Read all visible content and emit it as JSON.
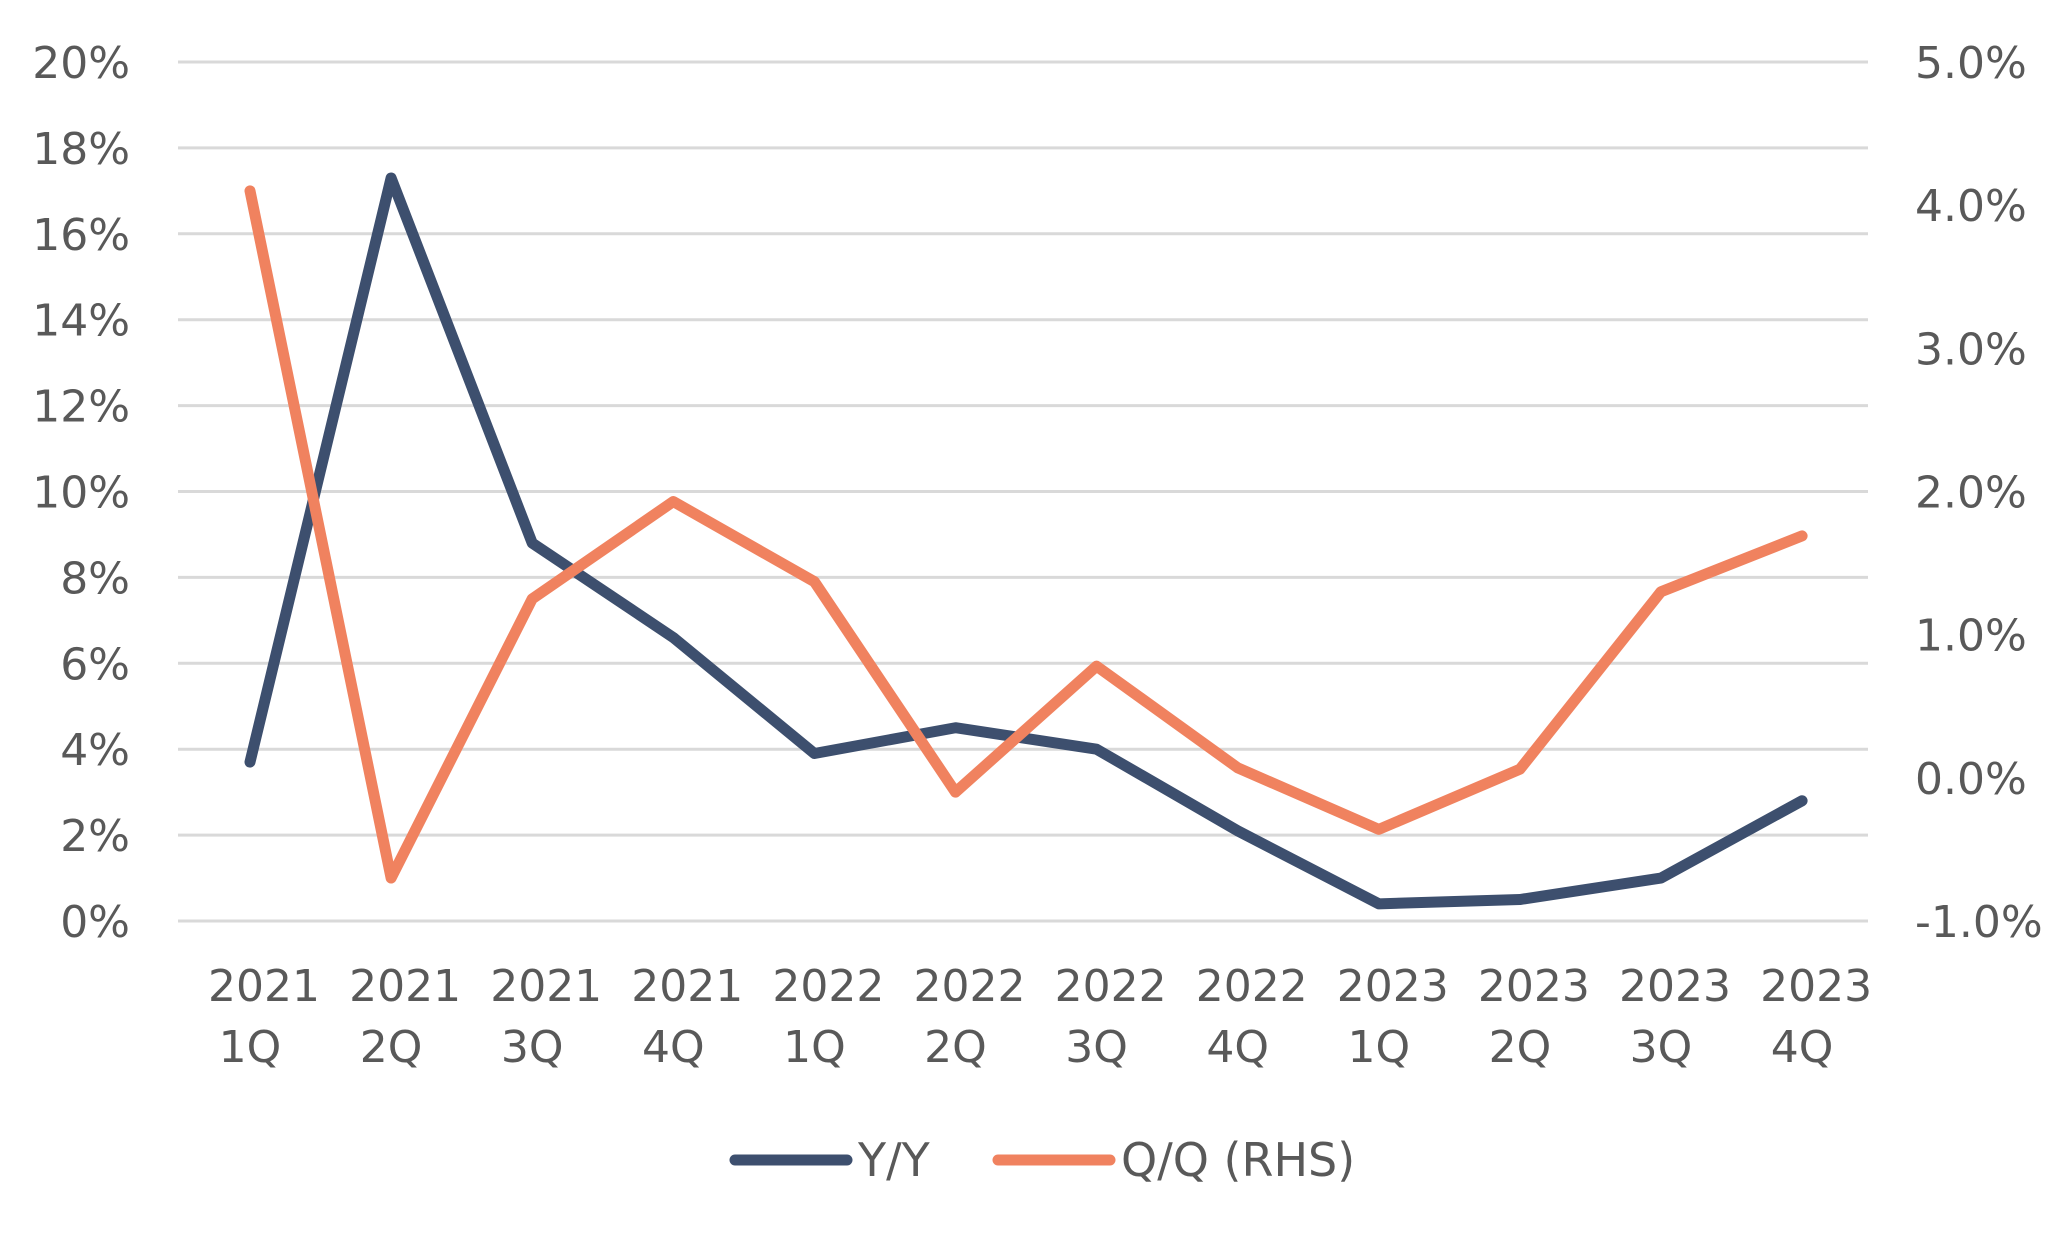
{
  "chart_data": {
    "type": "line",
    "categories": [
      [
        "2021",
        "1Q"
      ],
      [
        "2021",
        "2Q"
      ],
      [
        "2021",
        "3Q"
      ],
      [
        "2021",
        "4Q"
      ],
      [
        "2022",
        "1Q"
      ],
      [
        "2022",
        "2Q"
      ],
      [
        "2022",
        "3Q"
      ],
      [
        "2022",
        "4Q"
      ],
      [
        "2023",
        "1Q"
      ],
      [
        "2023",
        "2Q"
      ],
      [
        "2023",
        "3Q"
      ],
      [
        "2023",
        "4Q"
      ]
    ],
    "left_axis": {
      "ylim": [
        0,
        20
      ],
      "ticks": [
        "0%",
        "2%",
        "4%",
        "6%",
        "8%",
        "10%",
        "12%",
        "14%",
        "16%",
        "18%",
        "20%"
      ]
    },
    "right_axis": {
      "ylim": [
        -1.0,
        5.0
      ],
      "ticks": [
        "-1.0%",
        "0.0%",
        "1.0%",
        "2.0%",
        "3.0%",
        "4.0%",
        "5.0%"
      ]
    },
    "series": [
      {
        "name": "Y/Y",
        "axis": "left",
        "color": "#3d4f6e",
        "values": [
          3.7,
          17.3,
          8.8,
          6.6,
          3.9,
          4.5,
          4.0,
          2.1,
          0.4,
          0.5,
          1.0,
          2.8
        ]
      },
      {
        "name": "Q/Q (RHS)",
        "axis": "right",
        "color": "#f0825f",
        "values": [
          4.1,
          -0.7,
          1.25,
          1.93,
          1.37,
          -0.1,
          0.78,
          0.07,
          -0.36,
          0.06,
          1.3,
          1.69
        ]
      }
    ],
    "grid": true,
    "legend_position": "bottom-center"
  }
}
